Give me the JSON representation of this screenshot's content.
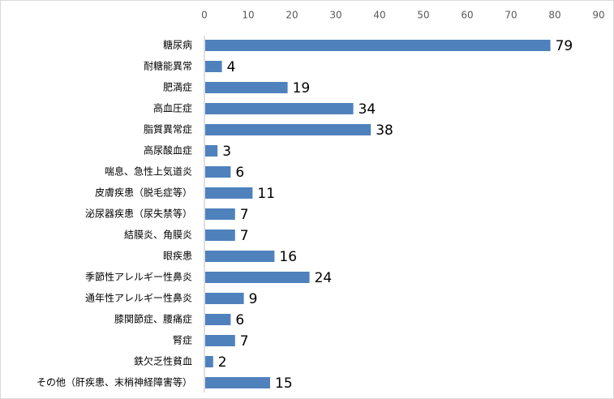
{
  "chart_data": {
    "type": "bar",
    "orientation": "horizontal",
    "title": "",
    "xlabel": "",
    "ylabel": "",
    "xlim": [
      0,
      90
    ],
    "x_ticks": [
      0,
      10,
      20,
      30,
      40,
      50,
      60,
      70,
      80,
      90
    ],
    "x_axis_position": "top",
    "grid": false,
    "legend": "none",
    "bar_color": "#4f81bd",
    "categories": [
      "糖尿病",
      "耐糖能異常",
      "肥満症",
      "高血圧症",
      "脂質異常症",
      "高尿酸血症",
      "喘息、急性上気道炎",
      "皮膚疾患（脱毛症等）",
      "泌尿器疾患（尿失禁等）",
      "結膜炎、角膜炎",
      "眼疾患",
      "季節性アレルギー性鼻炎",
      "通年性アレルギー性鼻炎",
      "膝関節症、腰痛症",
      "腎症",
      "鉄欠乏性貧血",
      "その他（肝疾患、末梢神経障害等）"
    ],
    "values": [
      79,
      4,
      19,
      34,
      38,
      3,
      6,
      11,
      7,
      7,
      16,
      24,
      9,
      6,
      7,
      2,
      15
    ]
  }
}
